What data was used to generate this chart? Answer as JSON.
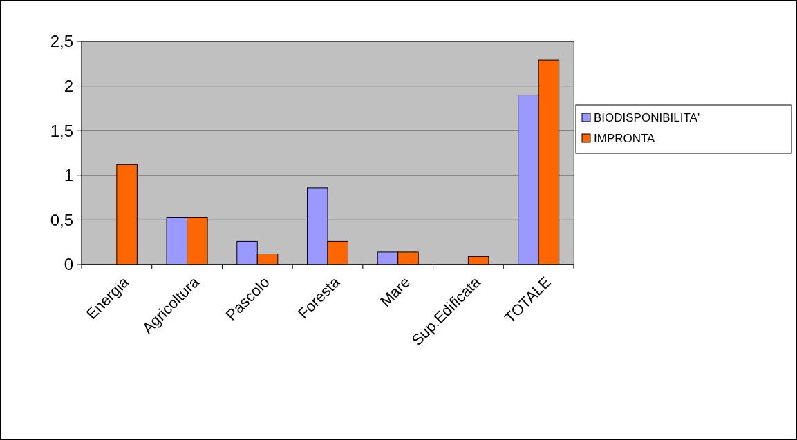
{
  "chart_data": {
    "type": "bar",
    "categories": [
      "Energia",
      "Agricoltura",
      "Pascolo",
      "Foresta",
      "Mare",
      "Sup.Edificata",
      "TOTALE"
    ],
    "series": [
      {
        "name": "BIODISPONIBILITA'",
        "color": "#9999ff",
        "values": [
          0,
          0.53,
          0.26,
          0.86,
          0.14,
          0,
          1.9
        ]
      },
      {
        "name": "IMPRONTA",
        "color": "#ff6600",
        "values": [
          1.12,
          0.53,
          0.12,
          0.26,
          0.14,
          0.09,
          2.29
        ]
      }
    ],
    "ylim": [
      0,
      2.5
    ],
    "yticks": [
      {
        "value": 0,
        "label": "0"
      },
      {
        "value": 0.5,
        "label": "0,5"
      },
      {
        "value": 1,
        "label": "1"
      },
      {
        "value": 1.5,
        "label": "1,5"
      },
      {
        "value": 2,
        "label": "2"
      },
      {
        "value": 2.5,
        "label": "2,5"
      }
    ],
    "grid": "y",
    "legend": "right"
  }
}
